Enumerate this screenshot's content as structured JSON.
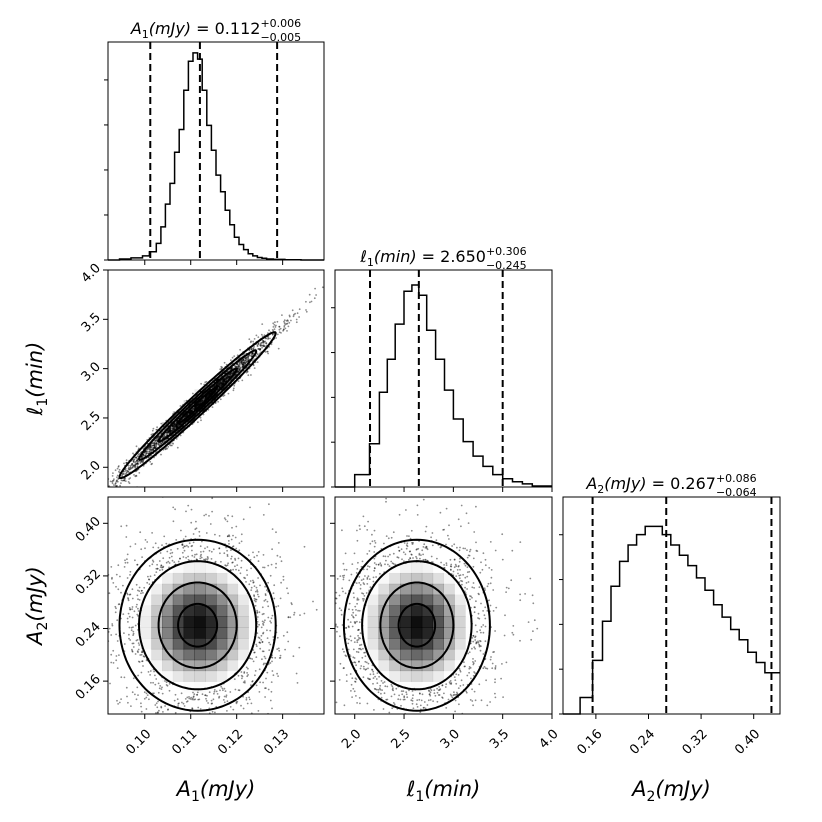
{
  "chart_data": {
    "type": "corner",
    "parameters": [
      {
        "key": "A1",
        "math": "A_1(mJy)",
        "axis_label": {
          "base": "A",
          "sub": "1",
          "rest": "(mJy)"
        },
        "title": {
          "base": "A",
          "sub": "1",
          "rest": "(mJy) = ",
          "value": "0.112",
          "plus": "+0.006",
          "minus": "−0.005"
        },
        "range": [
          0.092,
          0.139
        ],
        "ticks": [
          0.1,
          0.11,
          0.12,
          0.13
        ],
        "tick_labels": [
          "0.10",
          "0.11",
          "0.12",
          "0.13"
        ],
        "median": 0.112,
        "lower": 0.1012,
        "upper": 0.1288,
        "hist_edges": [
          0.092,
          0.0945,
          0.097,
          0.0995,
          0.101,
          0.1025,
          0.1035,
          0.1045,
          0.1055,
          0.1065,
          0.1075,
          0.1085,
          0.1095,
          0.1105,
          0.1115,
          0.1125,
          0.1135,
          0.1145,
          0.1155,
          0.1165,
          0.1175,
          0.1185,
          0.1195,
          0.1205,
          0.1215,
          0.1225,
          0.1235,
          0.1245,
          0.1255,
          0.1265,
          0.128,
          0.1305,
          0.134,
          0.139
        ],
        "hist_values": [
          0.0,
          0.005,
          0.01,
          0.02,
          0.04,
          0.08,
          0.16,
          0.27,
          0.37,
          0.52,
          0.63,
          0.82,
          0.96,
          1.0,
          0.97,
          0.82,
          0.65,
          0.53,
          0.41,
          0.33,
          0.24,
          0.17,
          0.11,
          0.075,
          0.05,
          0.03,
          0.02,
          0.012,
          0.008,
          0.005,
          0.003,
          0.001,
          0.0
        ]
      },
      {
        "key": "l1",
        "math": "ℓ_1(min)",
        "axis_label": {
          "base": "ℓ",
          "sub": "1",
          "rest": "(min)"
        },
        "title": {
          "base": "ℓ",
          "sub": "1",
          "rest": "(min) = ",
          "value": "2.650",
          "plus": "+0.306",
          "minus": "−0.245"
        },
        "range": [
          1.8,
          4.0
        ],
        "ticks": [
          2.0,
          2.5,
          3.0,
          3.5,
          4.0
        ],
        "tick_labels": [
          "2.0",
          "2.5",
          "3.0",
          "3.5",
          "4.0"
        ],
        "median": 2.65,
        "lower": 2.155,
        "upper": 3.5,
        "hist_edges": [
          1.8,
          2.0,
          2.15,
          2.25,
          2.33,
          2.41,
          2.5,
          2.58,
          2.65,
          2.73,
          2.82,
          2.91,
          3.0,
          3.1,
          3.2,
          3.3,
          3.4,
          3.5,
          3.6,
          3.7,
          3.8,
          4.0
        ],
        "hist_values": [
          0.0,
          0.06,
          0.21,
          0.46,
          0.62,
          0.79,
          0.95,
          0.98,
          0.93,
          0.76,
          0.62,
          0.47,
          0.33,
          0.22,
          0.15,
          0.1,
          0.06,
          0.04,
          0.025,
          0.015,
          0.005
        ]
      },
      {
        "key": "A2",
        "math": "A_2(mJy)",
        "axis_label": {
          "base": "A",
          "sub": "2",
          "rest": "(mJy)"
        },
        "title": {
          "base": "A",
          "sub": "2",
          "rest": "(mJy) = ",
          "value": "0.267",
          "plus": "+0.086",
          "minus": "−0.064"
        },
        "range": [
          0.11,
          0.44
        ],
        "ticks": [
          0.16,
          0.24,
          0.32,
          0.4
        ],
        "tick_labels": [
          "0.16",
          "0.24",
          "0.32",
          "0.40"
        ],
        "median": 0.267,
        "lower": 0.155,
        "upper": 0.427,
        "hist_edges": [
          0.11,
          0.136,
          0.155,
          0.17,
          0.183,
          0.196,
          0.209,
          0.222,
          0.235,
          0.248,
          0.261,
          0.274,
          0.287,
          0.3,
          0.313,
          0.326,
          0.339,
          0.352,
          0.365,
          0.378,
          0.391,
          0.404,
          0.417,
          0.44
        ],
        "hist_values": [
          0.0,
          0.08,
          0.26,
          0.45,
          0.62,
          0.74,
          0.82,
          0.87,
          0.91,
          0.91,
          0.87,
          0.82,
          0.77,
          0.72,
          0.66,
          0.6,
          0.53,
          0.47,
          0.41,
          0.36,
          0.3,
          0.25,
          0.2
        ]
      }
    ],
    "pairs": [
      {
        "x": "A1",
        "y": "l1",
        "shape": "ellipse",
        "center": [
          0.1115,
          2.63
        ],
        "sd": [
          0.0085,
          0.37
        ],
        "rho": 0.985,
        "contour_levels": [
          0.5,
          1.0,
          1.5,
          2.0
        ]
      },
      {
        "x": "A1",
        "y": "A2",
        "shape": "ellipse",
        "center": [
          0.1115,
          0.245
        ],
        "sd": [
          0.0085,
          0.065
        ],
        "rho": 0.0,
        "contour_levels": [
          0.5,
          1.0,
          1.5,
          2.0
        ]
      },
      {
        "x": "l1",
        "y": "A2",
        "shape": "ellipse",
        "center": [
          2.63,
          0.245
        ],
        "sd": [
          0.37,
          0.065
        ],
        "rho": 0.0,
        "contour_levels": [
          0.5,
          1.0,
          1.5,
          2.0
        ]
      }
    ],
    "colors": {
      "line": "#000000",
      "density": "#000000",
      "background": "#ffffff"
    }
  }
}
